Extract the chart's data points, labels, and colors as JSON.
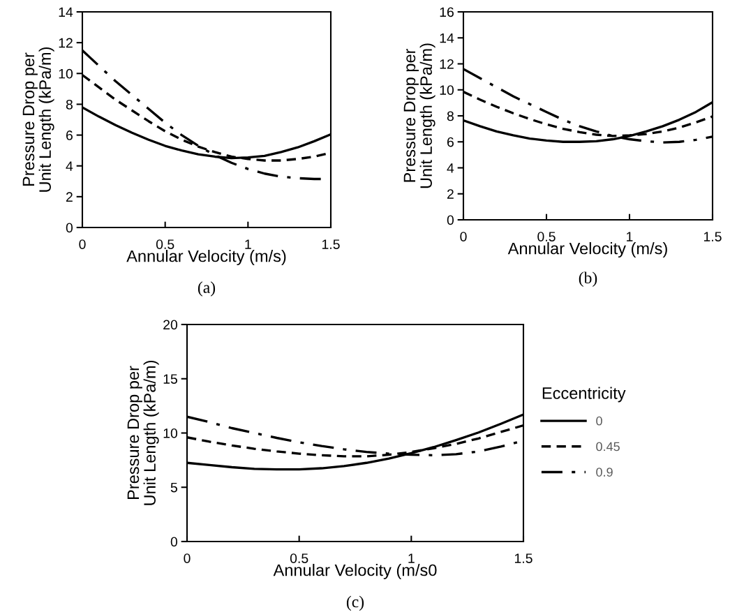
{
  "chart_data": [
    {
      "type": "line",
      "xlabel": "Annular Velocity (m/s)",
      "ylabel": "Pressure Drop per\nUnit Length (kPa/m)",
      "annotations": [
        "(a)"
      ],
      "x": [
        0,
        0.1,
        0.2,
        0.3,
        0.4,
        0.5,
        0.6,
        0.7,
        0.8,
        0.9,
        1.0,
        1.1,
        1.2,
        1.3,
        1.4,
        1.5
      ],
      "xlim": [
        0,
        1.5
      ],
      "xticks": [
        0,
        0.5,
        1,
        1.5
      ],
      "ylim": [
        0,
        14
      ],
      "yticks": [
        0,
        2,
        4,
        6,
        8,
        10,
        12,
        14
      ],
      "grid": false,
      "legend": false,
      "marker": "none",
      "series": [
        {
          "color": "#000000",
          "line_style": "solid",
          "values": [
            7.8,
            7.2,
            6.65,
            6.15,
            5.7,
            5.3,
            5.0,
            4.75,
            4.6,
            4.5,
            4.55,
            4.65,
            4.9,
            5.2,
            5.6,
            6.05
          ]
        },
        {
          "color": "#000000",
          "line_style": "dashed",
          "values": [
            9.9,
            9.1,
            8.3,
            7.6,
            6.9,
            6.25,
            5.7,
            5.25,
            4.9,
            4.6,
            4.45,
            4.35,
            4.35,
            4.45,
            4.6,
            4.85
          ]
        },
        {
          "color": "#000000",
          "line_style": "dashdot",
          "values": [
            11.5,
            10.5,
            9.5,
            8.6,
            7.7,
            6.8,
            6.0,
            5.3,
            4.7,
            4.2,
            3.8,
            3.5,
            3.3,
            3.2,
            3.15,
            3.15
          ]
        }
      ]
    },
    {
      "type": "line",
      "xlabel": "Annular Velocity (m/s)",
      "ylabel": "Pressure Drop per\nUnit Length (kPa/m)",
      "annotations": [
        "(b)"
      ],
      "x": [
        0,
        0.1,
        0.2,
        0.3,
        0.4,
        0.5,
        0.6,
        0.7,
        0.8,
        0.9,
        1.0,
        1.1,
        1.2,
        1.3,
        1.4,
        1.5
      ],
      "xlim": [
        0,
        1.5
      ],
      "xticks": [
        0,
        0.5,
        1,
        1.5
      ],
      "ylim": [
        0,
        16
      ],
      "yticks": [
        0,
        2,
        4,
        6,
        8,
        10,
        12,
        14,
        16
      ],
      "grid": false,
      "legend": false,
      "marker": "none",
      "series": [
        {
          "color": "#000000",
          "line_style": "solid",
          "values": [
            7.65,
            7.2,
            6.8,
            6.5,
            6.25,
            6.1,
            6.0,
            6.0,
            6.05,
            6.2,
            6.45,
            6.8,
            7.2,
            7.7,
            8.3,
            9.05
          ]
        },
        {
          "color": "#000000",
          "line_style": "dashed",
          "values": [
            9.85,
            9.25,
            8.7,
            8.2,
            7.75,
            7.35,
            7.0,
            6.75,
            6.55,
            6.45,
            6.5,
            6.6,
            6.8,
            7.1,
            7.5,
            7.95
          ]
        },
        {
          "color": "#000000",
          "line_style": "dashdot",
          "values": [
            11.6,
            10.9,
            10.2,
            9.5,
            8.9,
            8.3,
            7.7,
            7.2,
            6.8,
            6.45,
            6.2,
            6.05,
            5.95,
            6.0,
            6.15,
            6.4
          ]
        }
      ]
    },
    {
      "type": "line",
      "xlabel": "Annular Velocity (m/s0",
      "ylabel": "Pressure Drop per\nUnit Length (kPa/m)",
      "annotations": [
        "(c)"
      ],
      "legend_title": "Eccentricity",
      "x": [
        0,
        0.1,
        0.2,
        0.3,
        0.4,
        0.5,
        0.6,
        0.7,
        0.8,
        0.9,
        1.0,
        1.1,
        1.2,
        1.3,
        1.4,
        1.5
      ],
      "xlim": [
        0,
        1.5
      ],
      "xticks": [
        0,
        0.5,
        1,
        1.5
      ],
      "ylim": [
        0,
        20
      ],
      "yticks": [
        0,
        5,
        10,
        15,
        20
      ],
      "grid": false,
      "legend": "right",
      "marker": "none",
      "series": [
        {
          "name": "0",
          "color": "#000000",
          "line_style": "solid",
          "values": [
            7.25,
            7.05,
            6.85,
            6.7,
            6.65,
            6.65,
            6.75,
            6.95,
            7.25,
            7.65,
            8.15,
            8.7,
            9.35,
            10.05,
            10.85,
            11.7
          ]
        },
        {
          "name": "0.45",
          "color": "#000000",
          "line_style": "dashed",
          "values": [
            9.6,
            9.2,
            8.85,
            8.55,
            8.3,
            8.1,
            7.95,
            7.85,
            7.85,
            8.0,
            8.25,
            8.6,
            9.0,
            9.5,
            10.1,
            10.7
          ]
        },
        {
          "name": "0.9",
          "color": "#000000",
          "line_style": "dashdot",
          "values": [
            11.5,
            11.0,
            10.45,
            10.0,
            9.55,
            9.15,
            8.8,
            8.5,
            8.25,
            8.1,
            8.0,
            7.95,
            8.05,
            8.3,
            8.75,
            9.3
          ]
        }
      ]
    }
  ]
}
